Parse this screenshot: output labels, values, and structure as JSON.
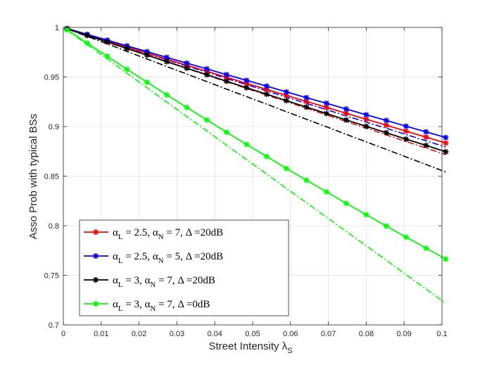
{
  "chart_data": {
    "type": "line",
    "xlabel": "Street Intensity λ",
    "xlabel_sub": "S",
    "ylabel": "Asso Prob with typical BSs",
    "xlim": [
      0,
      0.1
    ],
    "ylim": [
      0.7,
      1.0
    ],
    "grid": true,
    "legend_position": "bottom-left",
    "xticks": [
      0,
      0.01,
      0.02,
      0.03,
      0.04,
      0.05,
      0.06,
      0.07,
      0.08,
      0.09,
      0.1
    ],
    "xtick_labels": [
      "0",
      "0.01",
      "0.02",
      "0.03",
      "0.04",
      "0.05",
      "0.06",
      "0.07",
      "0.08",
      "0.09",
      "0.1"
    ],
    "yticks": [
      0.7,
      0.75,
      0.8,
      0.85,
      0.9,
      0.95,
      1.0
    ],
    "ytick_labels": [
      "0.7",
      "0.75",
      "0.8",
      "0.85",
      "0.9",
      "0.95",
      "1"
    ],
    "x": [
      0.001,
      0.0063,
      0.0116,
      0.0168,
      0.0221,
      0.0273,
      0.0326,
      0.0379,
      0.0431,
      0.0484,
      0.0537,
      0.0589,
      0.0642,
      0.0695,
      0.0747,
      0.08,
      0.0853,
      0.0905,
      0.0958,
      0.101
    ],
    "series": [
      {
        "name": "red",
        "color": "#ff0000",
        "legend": {
          "a1": "α",
          "s1": "L",
          "t1": " = 2.5, ",
          "a2": "α",
          "s2": "N",
          "t2": " = 7, ",
          "d": "Δ",
          "t3": " =20dB"
        },
        "sim": [
          0.9987,
          0.9925,
          0.9864,
          0.9802,
          0.9741,
          0.968,
          0.9619,
          0.9558,
          0.9497,
          0.9436,
          0.9375,
          0.9315,
          0.9254,
          0.9194,
          0.9134,
          0.9074,
          0.9014,
          0.8954,
          0.8894,
          0.8834
        ],
        "analytic": [
          0.9987,
          0.992,
          0.9853,
          0.9786,
          0.972,
          0.9653,
          0.9586,
          0.9519,
          0.9452,
          0.9385,
          0.9318,
          0.9252,
          0.9185,
          0.9118,
          0.9051,
          0.8984,
          0.8917,
          0.885,
          0.8784,
          0.8717
        ]
      },
      {
        "name": "blue",
        "color": "#0000ff",
        "legend": {
          "a1": "α",
          "s1": "L",
          "t1": " = 2.5, ",
          "a2": "α",
          "s2": "N",
          "t2": " = 5, ",
          "d": "Δ",
          "t3": " =20dB"
        },
        "sim": [
          0.9989,
          0.993,
          0.9872,
          0.9814,
          0.9756,
          0.9698,
          0.964,
          0.9582,
          0.9524,
          0.9466,
          0.9408,
          0.935,
          0.9292,
          0.9235,
          0.9177,
          0.9119,
          0.9062,
          0.9004,
          0.8947,
          0.889
        ],
        "analytic": [
          0.9988,
          0.9925,
          0.9862,
          0.9799,
          0.9737,
          0.9674,
          0.9611,
          0.9548,
          0.9485,
          0.9422,
          0.936,
          0.9297,
          0.9234,
          0.9171,
          0.9108,
          0.9046,
          0.8983,
          0.892,
          0.8857,
          0.8794
        ]
      },
      {
        "name": "black",
        "color": "#000000",
        "legend": {
          "a1": "α",
          "s1": "L",
          "t1": " = 3, ",
          "a2": "α",
          "s2": "N",
          "t2": " = 7, ",
          "d": "Δ",
          "t3": " =20dB"
        },
        "sim": [
          0.9986,
          0.9919,
          0.9853,
          0.9787,
          0.9721,
          0.9655,
          0.9589,
          0.9523,
          0.9458,
          0.9392,
          0.9327,
          0.9262,
          0.9197,
          0.9132,
          0.9067,
          0.9003,
          0.8938,
          0.8874,
          0.881,
          0.8746
        ],
        "analytic": [
          0.9986,
          0.991,
          0.9834,
          0.9758,
          0.9682,
          0.9606,
          0.953,
          0.9454,
          0.9378,
          0.9302,
          0.9226,
          0.915,
          0.9074,
          0.8998,
          0.8922,
          0.8846,
          0.877,
          0.8694,
          0.8618,
          0.8542
        ]
      },
      {
        "name": "green",
        "color": "#00ff00",
        "legend": {
          "a1": "α",
          "s1": "L",
          "t1": " = 3, ",
          "a2": "α",
          "s2": "N",
          "t2": " = 7, ",
          "d": "Δ",
          "t3": " =0dB"
        },
        "sim": [
          0.9976,
          0.9842,
          0.9709,
          0.9578,
          0.9448,
          0.932,
          0.9193,
          0.9067,
          0.8943,
          0.882,
          0.8698,
          0.8578,
          0.8459,
          0.8342,
          0.8226,
          0.8111,
          0.7997,
          0.7885,
          0.7774,
          0.7664
        ],
        "analytic": [
          0.9972,
          0.9827,
          0.9682,
          0.9537,
          0.9392,
          0.9247,
          0.9102,
          0.8957,
          0.8812,
          0.8667,
          0.8522,
          0.8377,
          0.8232,
          0.8087,
          0.7942,
          0.7797,
          0.7652,
          0.7507,
          0.7362,
          0.7217
        ]
      }
    ]
  }
}
